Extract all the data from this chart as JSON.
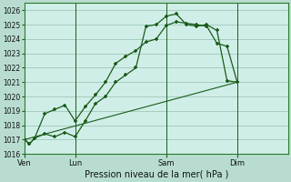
{
  "background_color": "#b8ddd0",
  "plot_bg_color": "#d0eee8",
  "grid_color": "#a0c8b8",
  "line_color": "#1a5c1a",
  "title": "Pression niveau de la mer( hPa )",
  "ylim": [
    1016,
    1026.5
  ],
  "yticks": [
    1016,
    1017,
    1018,
    1019,
    1020,
    1021,
    1022,
    1023,
    1024,
    1025,
    1026
  ],
  "xtick_labels": [
    "Ven",
    "Lun",
    "Sam",
    "Dim"
  ],
  "xtick_positions": [
    0,
    5,
    14,
    21
  ],
  "xlim": [
    0,
    26
  ],
  "line1_x": [
    0,
    0.5,
    1,
    2,
    3,
    4,
    5,
    6,
    7,
    8,
    9,
    10,
    11,
    12,
    13,
    14,
    15,
    16,
    17,
    18,
    19,
    20,
    21
  ],
  "line1_y": [
    1017.0,
    1016.7,
    1017.1,
    1018.8,
    1019.1,
    1019.4,
    1018.3,
    1019.3,
    1020.1,
    1021.0,
    1022.3,
    1022.8,
    1023.2,
    1023.8,
    1024.0,
    1024.95,
    1025.2,
    1025.1,
    1025.0,
    1024.9,
    1023.7,
    1023.5,
    1021.0
  ],
  "line2_x": [
    0,
    0.5,
    1,
    2,
    3,
    4,
    5,
    6,
    7,
    8,
    9,
    10,
    11,
    12,
    13,
    14,
    15,
    16,
    17,
    18,
    19,
    20,
    21
  ],
  "line2_y": [
    1017.0,
    1016.7,
    1017.1,
    1017.4,
    1017.2,
    1017.5,
    1017.2,
    1018.3,
    1019.5,
    1020.0,
    1021.0,
    1021.5,
    1022.0,
    1024.9,
    1025.0,
    1025.6,
    1025.75,
    1025.0,
    1024.9,
    1025.0,
    1024.6,
    1021.1,
    1021.0
  ],
  "line3_x": [
    0,
    21
  ],
  "line3_y": [
    1017.0,
    1021.0
  ],
  "vline_positions": [
    5,
    14,
    21
  ]
}
